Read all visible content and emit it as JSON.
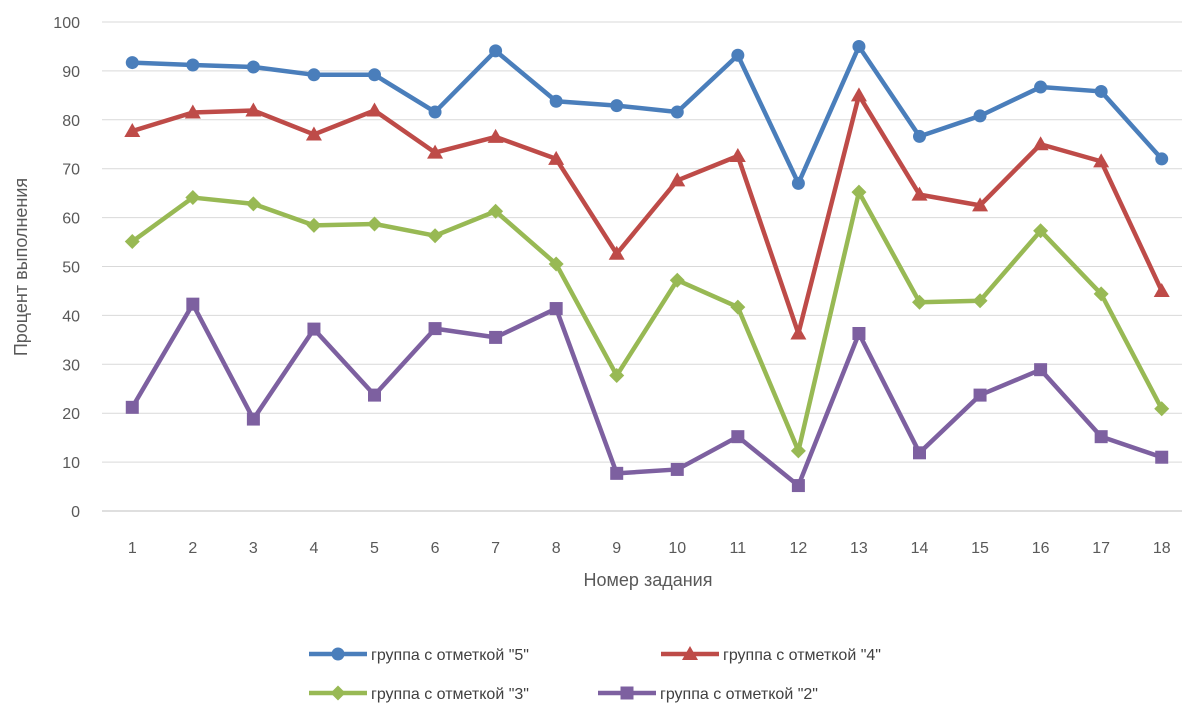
{
  "chart_data": {
    "type": "line",
    "title": "",
    "xlabel": "Номер задания",
    "ylabel": "Процент выполнения",
    "ylim": [
      0,
      100
    ],
    "yticks": [
      0,
      10,
      20,
      30,
      40,
      50,
      60,
      70,
      80,
      90,
      100
    ],
    "grid": true,
    "legend_position": "bottom",
    "categories": [
      "1",
      "2",
      "3",
      "4",
      "5",
      "6",
      "7",
      "8",
      "9",
      "10",
      "11",
      "12",
      "13",
      "14",
      "15",
      "16",
      "17",
      "18"
    ],
    "series": [
      {
        "name": "группа с  отметкой \"5\"",
        "color": "#4A7EBB",
        "marker": "circle",
        "values": [
          91.7,
          91.2,
          90.8,
          89.2,
          89.2,
          81.6,
          94.1,
          83.8,
          82.9,
          81.6,
          93.2,
          67.0,
          95.0,
          76.6,
          80.8,
          86.7,
          85.8,
          72.0
        ]
      },
      {
        "name": "группа с  отметкой \"4\"",
        "color": "#BE4B48",
        "marker": "triangle",
        "values": [
          77.7,
          81.5,
          81.9,
          77.0,
          81.9,
          73.3,
          76.5,
          72.0,
          52.6,
          67.6,
          72.6,
          36.3,
          85.0,
          64.7,
          62.5,
          75.0,
          71.5,
          45.0
        ]
      },
      {
        "name": "группа с  отметкой \"3\"",
        "color": "#98B954",
        "marker": "diamond",
        "values": [
          55.1,
          64.1,
          62.8,
          58.4,
          58.7,
          56.3,
          61.3,
          50.5,
          27.7,
          47.2,
          41.7,
          12.3,
          65.2,
          42.7,
          43.0,
          57.3,
          44.4,
          20.9
        ]
      },
      {
        "name": "группа с  отметкой \"2\"",
        "color": "#7D60A0",
        "marker": "square",
        "values": [
          21.2,
          42.3,
          18.8,
          37.2,
          23.7,
          37.3,
          35.5,
          41.4,
          7.7,
          8.5,
          15.2,
          5.2,
          36.3,
          11.9,
          23.7,
          28.9,
          15.2,
          11.0
        ]
      }
    ]
  }
}
